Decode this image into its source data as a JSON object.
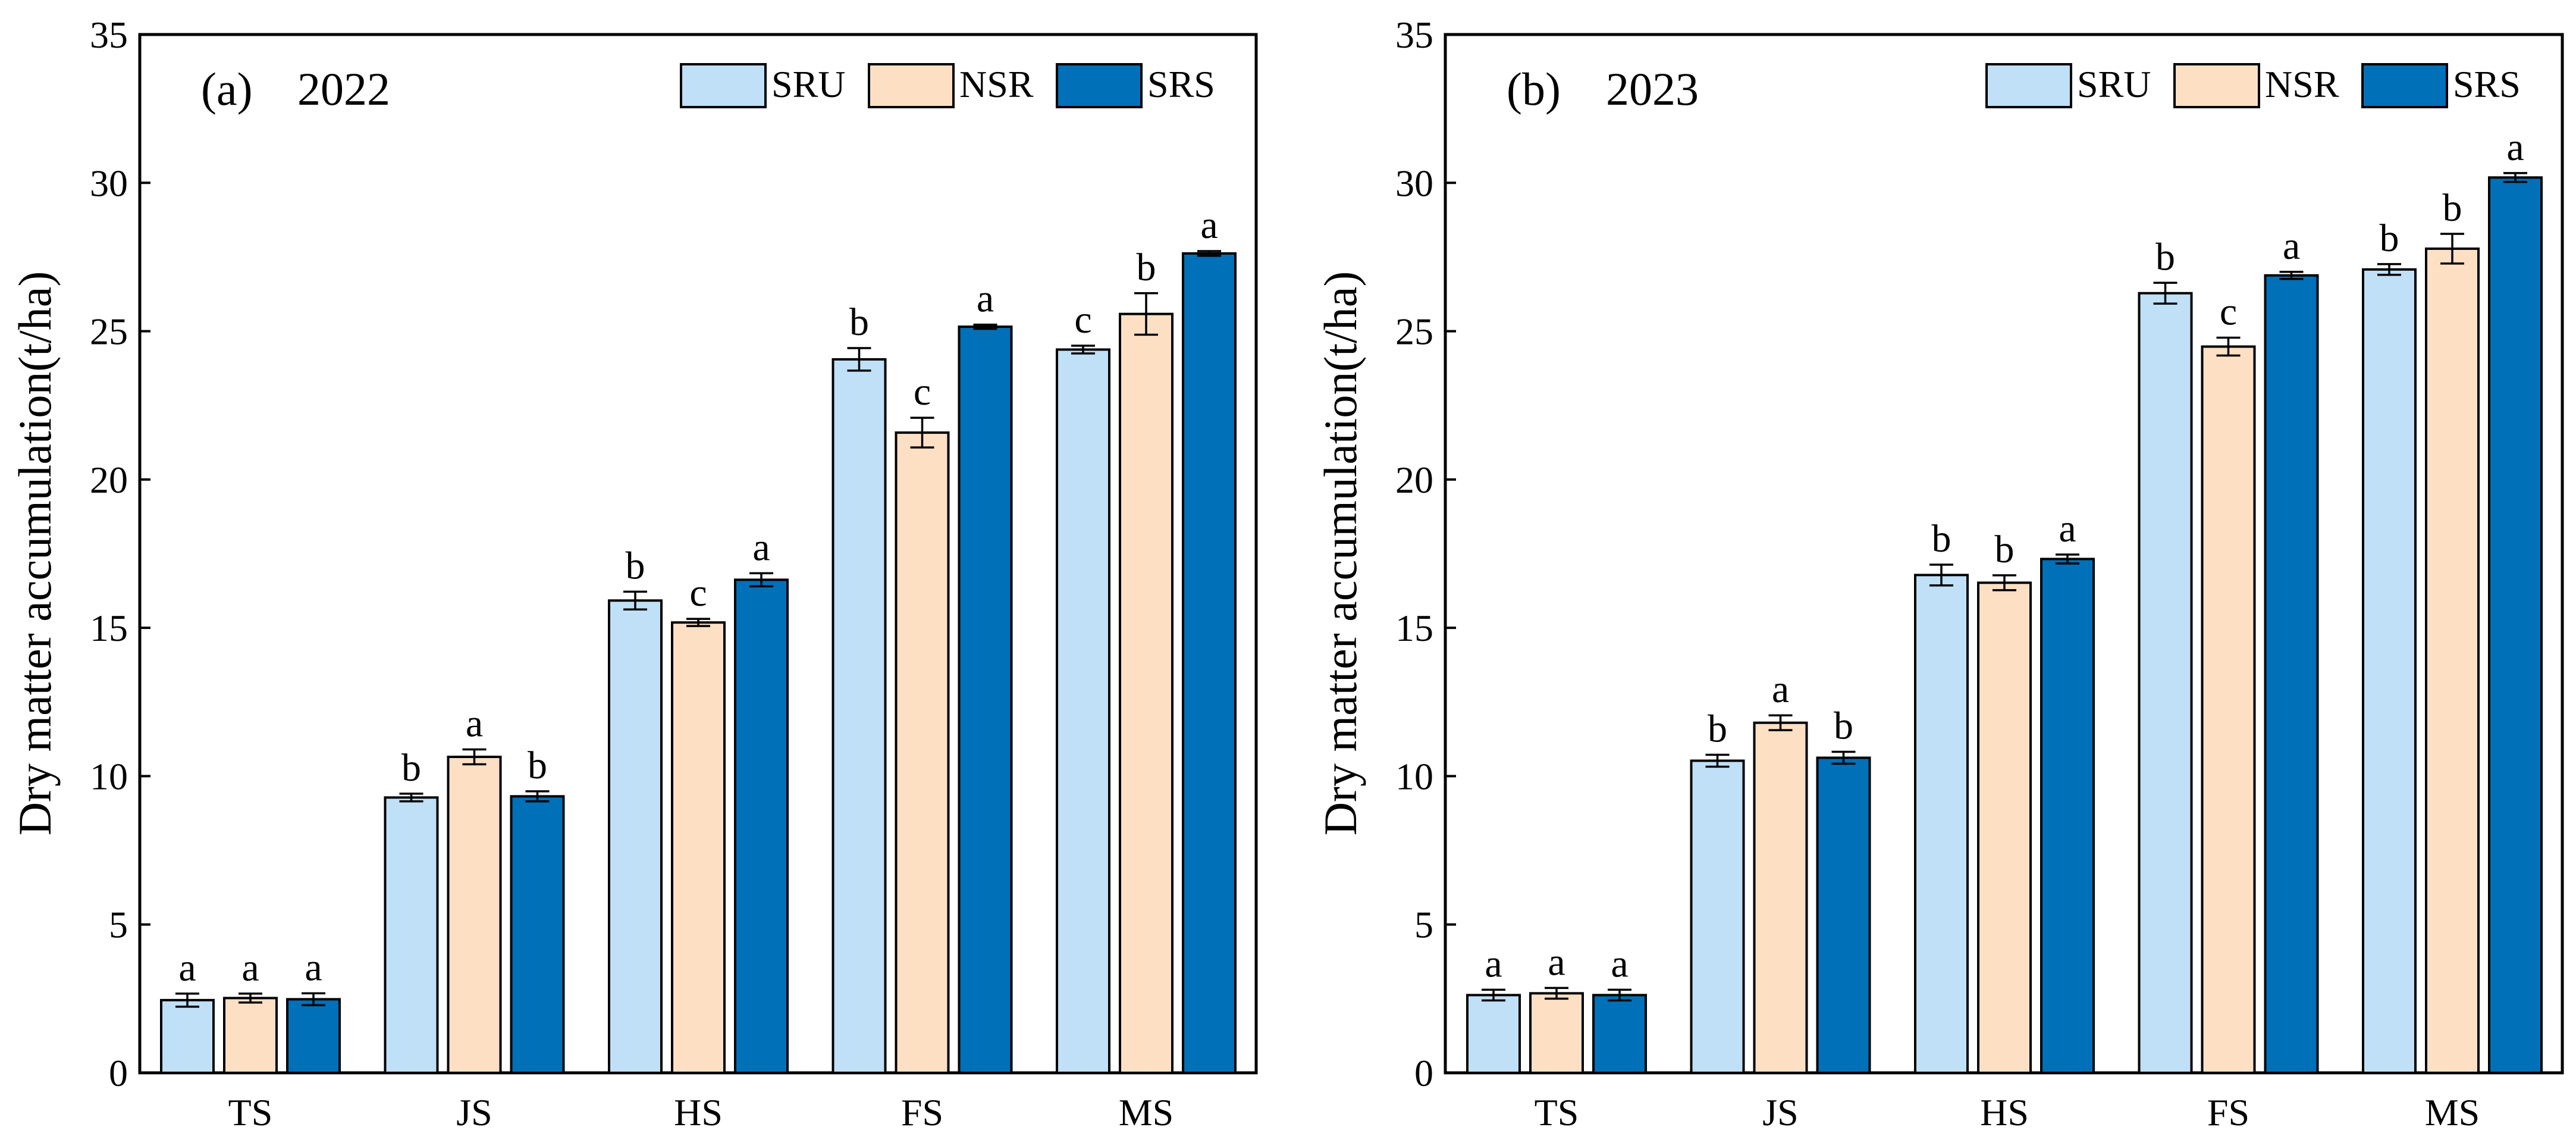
{
  "chart_data": [
    {
      "type": "bar",
      "panel_label": "(a)",
      "year": "2022",
      "xlabel": "",
      "ylabel": "Dry matter accumulation(t/ha)",
      "ylim": [
        0,
        35
      ],
      "yticks": [
        "0",
        "5",
        "10",
        "15",
        "20",
        "25",
        "30",
        "35"
      ],
      "grid": false,
      "legend_position": "top-right",
      "categories": [
        "TS",
        "JS",
        "HS",
        "FS",
        "MS"
      ],
      "series": [
        {
          "name": "SRU",
          "color": "#bfe0f7",
          "values": [
            2.45,
            9.28,
            15.92,
            24.05,
            24.38
          ],
          "errors": [
            0.22,
            0.13,
            0.3,
            0.38,
            0.13
          ],
          "letters": [
            "a",
            "b",
            "b",
            "b",
            "c"
          ]
        },
        {
          "name": "NSR",
          "color": "#fde0c4",
          "values": [
            2.52,
            10.65,
            15.18,
            21.58,
            25.58
          ],
          "errors": [
            0.15,
            0.25,
            0.12,
            0.5,
            0.7
          ],
          "letters": [
            "a",
            "a",
            "c",
            "c",
            "b"
          ]
        },
        {
          "name": "SRS",
          "color": "#0070b8",
          "values": [
            2.48,
            9.32,
            16.62,
            25.15,
            27.62
          ],
          "errors": [
            0.2,
            0.17,
            0.22,
            0.07,
            0.08
          ],
          "letters": [
            "a",
            "b",
            "a",
            "a",
            "a"
          ]
        }
      ]
    },
    {
      "type": "bar",
      "panel_label": "(b)",
      "year": "2023",
      "xlabel": "",
      "ylabel": "Dry matter accumulation(t/ha)",
      "ylim": [
        0,
        35
      ],
      "yticks": [
        "0",
        "5",
        "10",
        "15",
        "20",
        "25",
        "30",
        "35"
      ],
      "grid": false,
      "legend_position": "top-right",
      "categories": [
        "TS",
        "JS",
        "HS",
        "FS",
        "MS"
      ],
      "series": [
        {
          "name": "SRU",
          "color": "#bfe0f7",
          "values": [
            2.62,
            10.52,
            16.78,
            26.28,
            27.08
          ],
          "errors": [
            0.18,
            0.2,
            0.35,
            0.35,
            0.18
          ],
          "letters": [
            "a",
            "b",
            "b",
            "b",
            "b"
          ]
        },
        {
          "name": "NSR",
          "color": "#fde0c4",
          "values": [
            2.68,
            11.8,
            16.52,
            24.48,
            27.78
          ],
          "errors": [
            0.18,
            0.25,
            0.25,
            0.3,
            0.5
          ],
          "letters": [
            "a",
            "a",
            "b",
            "c",
            "b"
          ]
        },
        {
          "name": "SRS",
          "color": "#0070b8",
          "values": [
            2.62,
            10.62,
            17.32,
            26.88,
            30.18
          ],
          "errors": [
            0.18,
            0.2,
            0.15,
            0.12,
            0.15
          ],
          "letters": [
            "a",
            "b",
            "a",
            "a",
            "a"
          ]
        }
      ]
    }
  ]
}
